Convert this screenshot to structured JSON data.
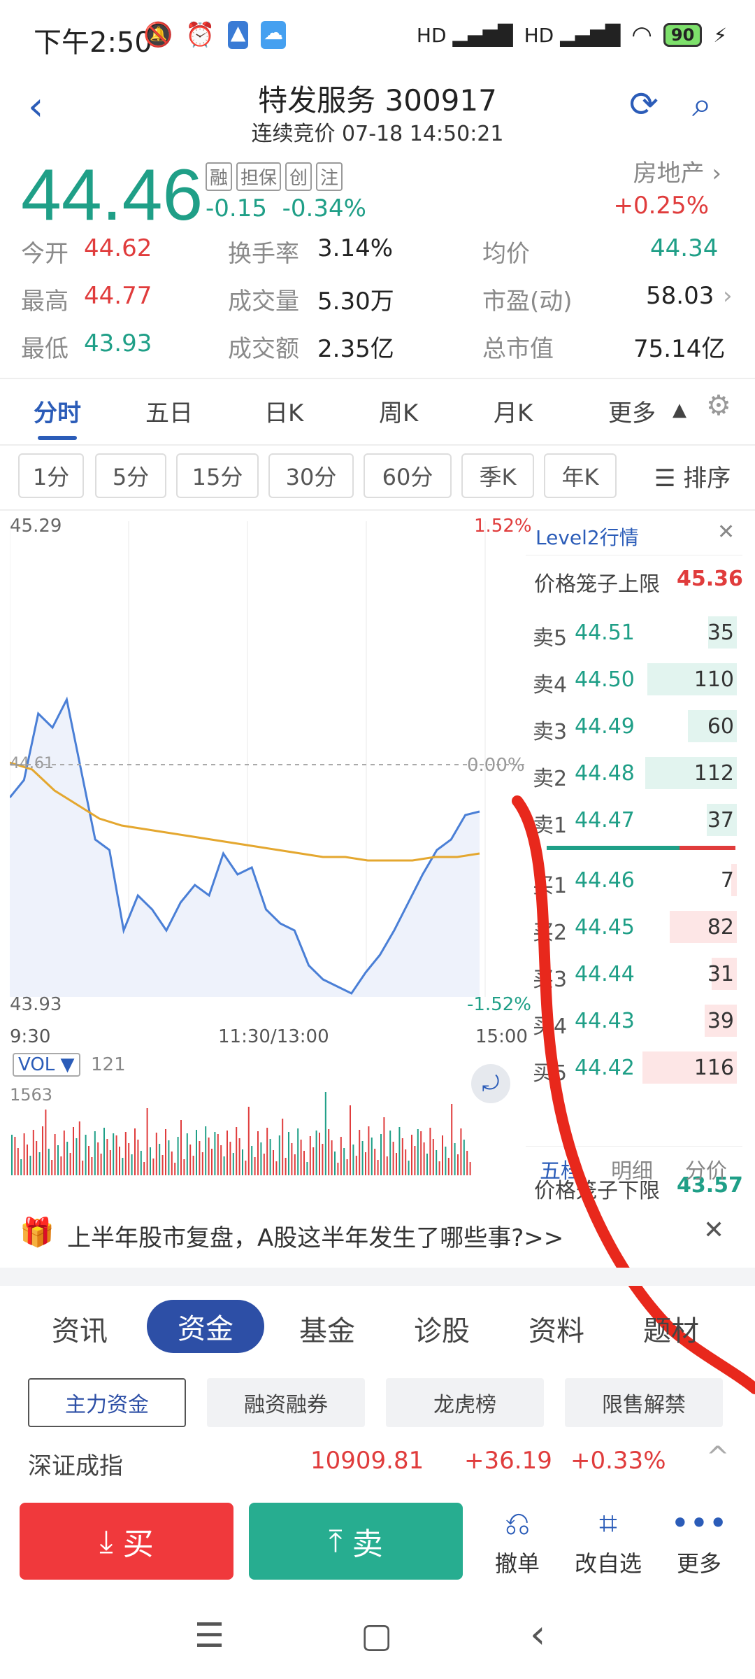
{
  "status_bar": {
    "time": "下午2:50",
    "battery": "90",
    "net1": "HD",
    "net2": "HD"
  },
  "header": {
    "title": "特发服务 300917",
    "subtitle": "连续竞价 07-18 14:50:21"
  },
  "quote": {
    "price": "44.46",
    "tags": [
      "融",
      "担保",
      "创",
      "注"
    ],
    "change": "-0.15",
    "change_pct": "-0.34%",
    "sector": "房地产",
    "sector_chg": "+0.25%"
  },
  "stats": [
    [
      {
        "label": "今开",
        "value": "44.62",
        "color": "red"
      },
      {
        "label": "换手率",
        "value": "3.14%"
      },
      {
        "label": "均价",
        "value": "44.34",
        "color": "green"
      }
    ],
    [
      {
        "label": "最高",
        "value": "44.77",
        "color": "red"
      },
      {
        "label": "成交量",
        "value": "5.30万"
      },
      {
        "label": "市盈(动)",
        "value": "58.03"
      }
    ],
    [
      {
        "label": "最低",
        "value": "43.93",
        "color": "green"
      },
      {
        "label": "成交额",
        "value": "2.35亿"
      },
      {
        "label": "总市值",
        "value": "75.14亿"
      }
    ]
  ],
  "chart_tabs": [
    "分时",
    "五日",
    "日K",
    "周K",
    "月K",
    "更多"
  ],
  "periods": [
    "1分",
    "5分",
    "15分",
    "30分",
    "60分",
    "季K",
    "年K"
  ],
  "sort_label": "排序",
  "chart": {
    "ymax": "45.29",
    "ymin": "43.93",
    "pct_max": "1.52%",
    "pct_min": "-1.52%",
    "pct_zero": "0.00%",
    "prev_close_label": "44.61",
    "time_start": "9:30",
    "time_mid": "11:30/13:00",
    "time_end": "15:00",
    "vol_label": "VOL ▼",
    "vol_value": "121",
    "vol_max": "1563"
  },
  "chart_data": {
    "type": "line",
    "series": [
      {
        "values": [
          44.5,
          44.55,
          44.74,
          44.7,
          44.78,
          44.58,
          44.38,
          44.35,
          44.12,
          44.22,
          44.18,
          44.12,
          44.2,
          44.25,
          44.22,
          44.34,
          44.28,
          44.3,
          44.18,
          44.14,
          44.12,
          44.02,
          43.98,
          43.96,
          43.94,
          44.0,
          44.05,
          44.12,
          44.2,
          44.28,
          44.35,
          44.38,
          44.45,
          44.46
        ]
      },
      {
        "values": [
          44.6,
          44.58,
          44.52,
          44.48,
          44.44,
          44.42,
          44.41,
          44.4,
          44.39,
          44.38,
          44.37,
          44.36,
          44.35,
          44.34,
          44.33,
          44.33,
          44.32,
          44.32,
          44.32,
          44.33,
          44.33,
          44.34
        ]
      }
    ],
    "ylim": [
      43.93,
      45.29
    ]
  },
  "level2": {
    "title": "Level2行情",
    "upper_label": "价格笼子上限",
    "upper": "45.36",
    "lower_label": "价格笼子下限",
    "lower": "43.57",
    "sells": [
      {
        "label": "卖5",
        "price": "44.51",
        "vol": "35"
      },
      {
        "label": "卖4",
        "price": "44.50",
        "vol": "110"
      },
      {
        "label": "卖3",
        "price": "44.49",
        "vol": "60"
      },
      {
        "label": "卖2",
        "price": "44.48",
        "vol": "112"
      },
      {
        "label": "卖1",
        "price": "44.47",
        "vol": "37"
      }
    ],
    "buys": [
      {
        "label": "买1",
        "price": "44.46",
        "vol": "7"
      },
      {
        "label": "买2",
        "price": "44.45",
        "vol": "82"
      },
      {
        "label": "买3",
        "price": "44.44",
        "vol": "31"
      },
      {
        "label": "买4",
        "price": "44.43",
        "vol": "39"
      },
      {
        "label": "买5",
        "price": "44.42",
        "vol": "116"
      }
    ],
    "tabs": [
      "五档",
      "明细",
      "分价"
    ]
  },
  "banner": "上半年股市复盘，A股这半年发生了哪些事?>>",
  "content_tabs": [
    "资讯",
    "资金",
    "基金",
    "诊股",
    "资料",
    "题材"
  ],
  "sub_tabs": [
    "主力资金",
    "融资融券",
    "龙虎榜",
    "限售解禁"
  ],
  "index": {
    "name": "深证成指",
    "value": "10909.81",
    "chg": "+36.19",
    "pct": "+0.33%"
  },
  "actions": {
    "buy": "买",
    "sell": "卖",
    "cancel": "撤单",
    "watch": "改自选",
    "more": "更多"
  }
}
